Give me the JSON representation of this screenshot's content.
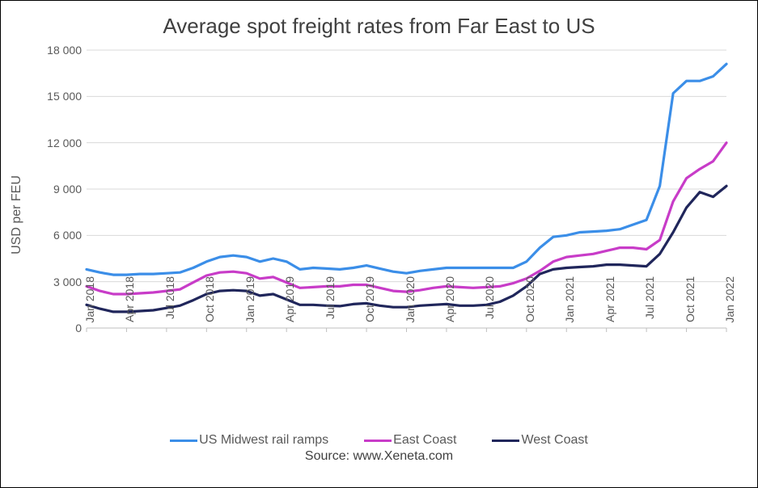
{
  "chart": {
    "type": "line",
    "title": "Average spot freight rates from Far East to US",
    "title_fontsize": 26,
    "ylabel": "USD per FEU",
    "label_fontsize": 16,
    "tick_fontsize": 14,
    "background_color": "#ffffff",
    "grid_color": "#d9d9d9",
    "axis_color": "#bfbfbf",
    "text_color": "#595959",
    "ylim": [
      0,
      18000
    ],
    "ytick_step": 3000,
    "ytick_labels": [
      "0",
      "3 000",
      "6 000",
      "9 000",
      "12 000",
      "15 000",
      "18 000"
    ],
    "xticks_labeled": [
      "Jan 2018",
      "Apr 2018",
      "Jul 2018",
      "Oct 2018",
      "Jan 2019",
      "Apr 2019",
      "Jul 2019",
      "Oct 2019",
      "Jan 2020",
      "Apr 2020",
      "Jul 2020",
      "Oct 2020",
      "Jan 2021",
      "Apr 2021",
      "Jul 2021",
      "Oct 2021",
      "Jan 2022"
    ],
    "line_width": 3.2,
    "series": [
      {
        "name": "US Midwest rail ramps",
        "color": "#3b8ee8",
        "values": [
          3800,
          3600,
          3450,
          3450,
          3500,
          3500,
          3550,
          3600,
          3900,
          4300,
          4600,
          4700,
          4600,
          4300,
          4500,
          4300,
          3800,
          3900,
          3850,
          3800,
          3900,
          4050,
          3850,
          3650,
          3550,
          3700,
          3800,
          3900,
          3900,
          3900,
          3900,
          3900,
          3900,
          4300,
          5200,
          5900,
          6000,
          6200,
          6250,
          6300,
          6400,
          6700,
          7000,
          9200,
          15200,
          16000,
          16000,
          16300,
          17100
        ]
      },
      {
        "name": "East Coast",
        "color": "#c83cc8",
        "values": [
          2700,
          2400,
          2200,
          2200,
          2250,
          2300,
          2400,
          2500,
          2950,
          3400,
          3600,
          3650,
          3550,
          3200,
          3300,
          2950,
          2600,
          2650,
          2700,
          2700,
          2800,
          2800,
          2600,
          2400,
          2350,
          2450,
          2600,
          2700,
          2650,
          2600,
          2650,
          2700,
          2900,
          3200,
          3700,
          4300,
          4600,
          4700,
          4800,
          5000,
          5200,
          5200,
          5100,
          5700,
          8200,
          9700,
          10300,
          10800,
          12000
        ]
      },
      {
        "name": "West Coast",
        "color": "#20265b",
        "values": [
          1500,
          1250,
          1050,
          1050,
          1100,
          1150,
          1300,
          1450,
          1800,
          2200,
          2400,
          2450,
          2400,
          2100,
          2200,
          1850,
          1500,
          1500,
          1450,
          1420,
          1550,
          1600,
          1450,
          1350,
          1350,
          1450,
          1500,
          1550,
          1450,
          1450,
          1500,
          1700,
          2100,
          2700,
          3500,
          3800,
          3900,
          3950,
          4000,
          4100,
          4100,
          4050,
          4000,
          4800,
          6200,
          7800,
          8800,
          8500,
          9200
        ]
      }
    ],
    "legend": {
      "position": "bottom",
      "items": [
        "US Midwest rail ramps",
        "East Coast",
        "West Coast"
      ]
    },
    "source": "Source: www.Xeneta.com"
  }
}
